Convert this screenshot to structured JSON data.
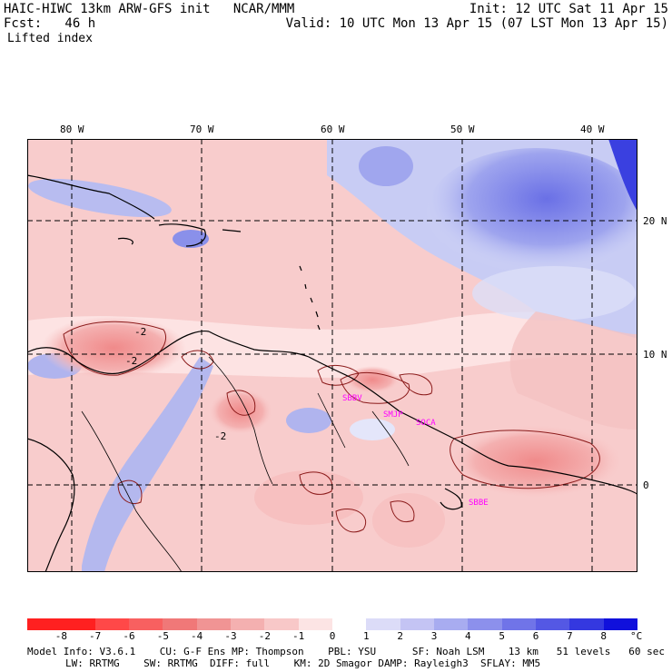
{
  "header": {
    "title": "HAIC-HIWC 13km ARW-GFS init   NCAR/MMM",
    "init": "Init: 12 UTC Sat 11 Apr 15",
    "fcst_label": "Fcst:   46 h",
    "valid": "Valid: 10 UTC Mon 13 Apr 15 (07 LST Mon 13 Apr 15)",
    "field": "Lifted index"
  },
  "map": {
    "lon_labels": [
      "80 W",
      "70 W",
      "60 W",
      "50 W",
      "40 W"
    ],
    "lat_labels": [
      "20 N",
      "10 N",
      "0"
    ],
    "contour_labels": [
      "-2",
      "-2",
      "-2"
    ],
    "stations": [
      "SBBV",
      "SMJP",
      "SOCA",
      "SBBE"
    ],
    "station_color": "#ff00ff"
  },
  "colorbar": {
    "levels": [
      "-8",
      "-7",
      "-6",
      "-5",
      "-4",
      "-3",
      "-2",
      "-1",
      "0",
      "1",
      "2",
      "3",
      "4",
      "5",
      "6",
      "7",
      "8"
    ],
    "unit": "°C",
    "colors": [
      "#ff2020",
      "#ff4848",
      "#f86060",
      "#f07878",
      "#f09494",
      "#f4b0b0",
      "#f8c8c8",
      "#fce4e4",
      "#ffffff",
      "#dcdcf8",
      "#c4c4f4",
      "#a8acf0",
      "#8c90ec",
      "#7074e8",
      "#5458e4",
      "#3438e0",
      "#1010dc"
    ]
  },
  "footer": {
    "line1": "Model Info: V3.6.1    CU: G-F Ens MP: Thompson    PBL: YSU      SF: Noah LSM    13 km   51 levels   60 sec",
    "line2": "LW: RRTMG    SW: RRTMG  DIFF: full    KM: 2D Smagor DAMP: Rayleigh3  SFLAY: MM5"
  }
}
